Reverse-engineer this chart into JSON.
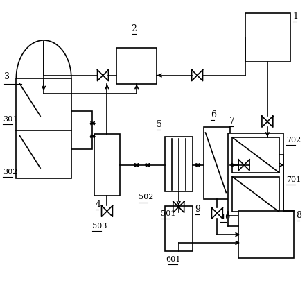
{
  "bg_color": "#ffffff",
  "line_color": "#000000",
  "fig_width": 4.43,
  "fig_height": 4.05,
  "dpi": 100
}
